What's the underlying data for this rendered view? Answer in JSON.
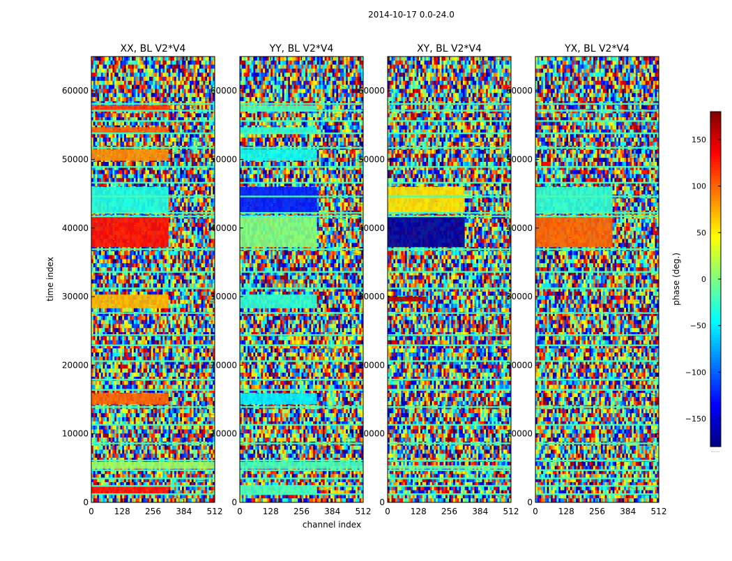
{
  "figure": {
    "suptitle": "2014-10-17 0.0-24.0"
  },
  "chart_data": {
    "type": "heatmap",
    "colormap": "jet",
    "xlabel": "channel index",
    "ylabel": "time index",
    "xlim": [
      0,
      512
    ],
    "ylim": [
      0,
      65000
    ],
    "xticks": [
      0,
      128,
      256,
      384,
      512
    ],
    "yticks": [
      0,
      10000,
      20000,
      30000,
      40000,
      50000,
      60000
    ],
    "colorbar": {
      "label": "phase (deg.)",
      "range": [
        -180,
        180
      ],
      "ticks": [
        150,
        100,
        50,
        0,
        -50,
        -100,
        -150
      ],
      "tick_labels": [
        "150",
        "100",
        "50",
        "0",
        "−50",
        "−100",
        "−150"
      ],
      "footer": "......"
    },
    "panels": [
      {
        "title": "XX, BL V2*V4",
        "coherent_bands": [
          {
            "t0": 1300,
            "t1": 2300,
            "ch1": 320,
            "phase": 130
          },
          {
            "t0": 4900,
            "t1": 5900,
            "ch1": 512,
            "phase": 10
          },
          {
            "t0": 14300,
            "t1": 15900,
            "ch1": 320,
            "phase": 100
          },
          {
            "t0": 28300,
            "t1": 30300,
            "ch1": 320,
            "phase": 70
          },
          {
            "t0": 37200,
            "t1": 41600,
            "ch1": 320,
            "phase": 130
          },
          {
            "t0": 42300,
            "t1": 46000,
            "ch1": 320,
            "phase": -35
          },
          {
            "t0": 49800,
            "t1": 51500,
            "ch1": 320,
            "phase": 85
          },
          {
            "t0": 53900,
            "t1": 54700,
            "ch1": 320,
            "phase": 100
          },
          {
            "t0": 57000,
            "t1": 57900,
            "ch1": 320,
            "phase": 115
          }
        ]
      },
      {
        "title": "YY, BL V2*V4",
        "coherent_bands": [
          {
            "t0": 1300,
            "t1": 2300,
            "ch1": 320,
            "phase": -20
          },
          {
            "t0": 4900,
            "t1": 5900,
            "ch1": 512,
            "phase": -20
          },
          {
            "t0": 14300,
            "t1": 15900,
            "ch1": 320,
            "phase": -50
          },
          {
            "t0": 28300,
            "t1": 30300,
            "ch1": 320,
            "phase": -30
          },
          {
            "t0": 37200,
            "t1": 41800,
            "ch1": 320,
            "phase": 0
          },
          {
            "t0": 42300,
            "t1": 46000,
            "ch1": 320,
            "phase": -125
          },
          {
            "t0": 49800,
            "t1": 51500,
            "ch1": 320,
            "phase": -40
          },
          {
            "t0": 53900,
            "t1": 54700,
            "ch1": 320,
            "phase": -30
          },
          {
            "t0": 57000,
            "t1": 57900,
            "ch1": 320,
            "phase": -20
          }
        ]
      },
      {
        "title": "XY, BL V2*V4",
        "coherent_bands": [
          {
            "t0": 4900,
            "t1": 5400,
            "ch1": 512,
            "phase": -10
          },
          {
            "t0": 29300,
            "t1": 30000,
            "ch1": 160,
            "phase": 160
          },
          {
            "t0": 37200,
            "t1": 41600,
            "ch1": 320,
            "phase": -170
          },
          {
            "t0": 42300,
            "t1": 46000,
            "ch1": 320,
            "phase": 55
          }
        ]
      },
      {
        "title": "YX, BL V2*V4",
        "coherent_bands": [
          {
            "t0": 37200,
            "t1": 41600,
            "ch1": 320,
            "phase": 100
          },
          {
            "t0": 42300,
            "t1": 46000,
            "ch1": 320,
            "phase": -30
          }
        ]
      }
    ],
    "flagged_rows": [
      1200,
      2400,
      3500,
      4700,
      6100,
      8600,
      11300,
      13900,
      16400,
      17900,
      20600,
      22900,
      24400,
      27600,
      31200,
      33600,
      36900,
      41700,
      42200,
      44600,
      46600,
      48900,
      51700,
      53800,
      55600,
      57100,
      58100
    ]
  }
}
